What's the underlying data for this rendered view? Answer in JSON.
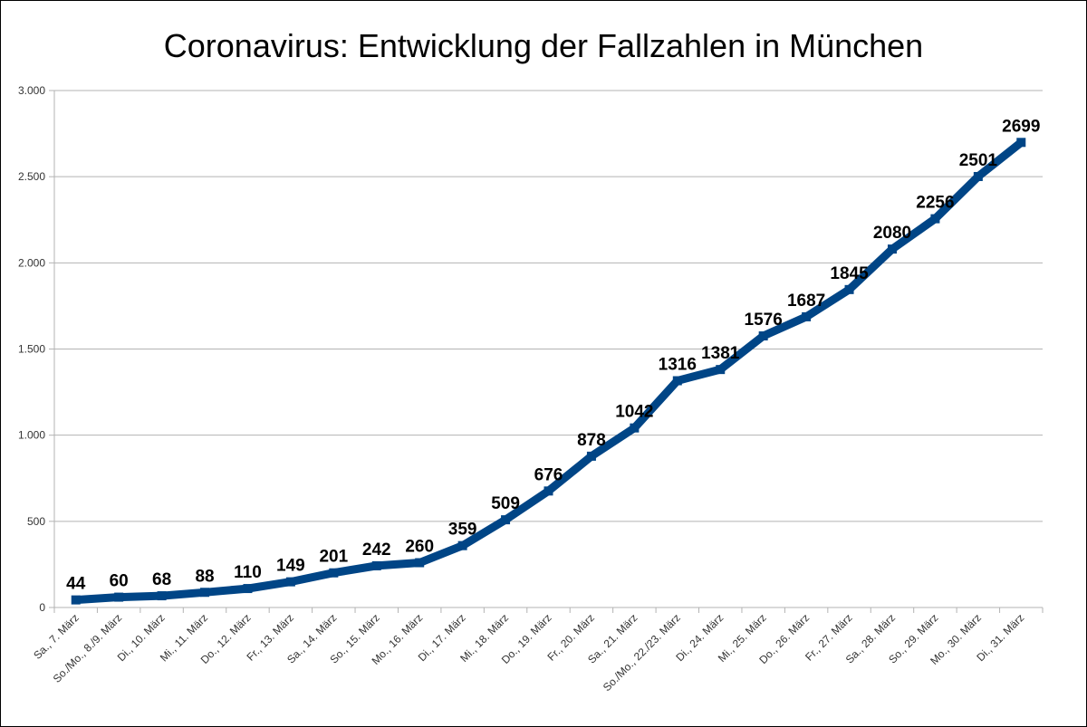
{
  "chart_data": {
    "type": "line",
    "title": "Coronavirus: Entwicklung der Fallzahlen in München",
    "xlabel": "",
    "ylabel": "",
    "categories": [
      "Sa., 7. März",
      "So./Mo., 8./9. März",
      "Di., 10. März",
      "Mi., 11. März",
      "Do., 12. März",
      "Fr., 13. März",
      "Sa., 14. März",
      "So., 15. März",
      "Mo., 16. März",
      "Di., 17. März",
      "Mi., 18. März",
      "Do., 19. März",
      "Fr., 20. März",
      "Sa., 21. März",
      "So./Mo., 22./23. März",
      "Di., 24. März",
      "Mi., 25. März",
      "Do., 26. März",
      "Fr., 27. März",
      "Sa., 28. März",
      "So., 29. März",
      "Mo., 30. März",
      "Di., 31. März"
    ],
    "values": [
      44,
      60,
      68,
      88,
      110,
      149,
      201,
      242,
      260,
      359,
      509,
      676,
      878,
      1042,
      1316,
      1381,
      1576,
      1687,
      1845,
      2080,
      2256,
      2501,
      2699
    ],
    "ylim": [
      0,
      3000
    ],
    "yticks": [
      0,
      500,
      1000,
      1500,
      2000,
      2500,
      3000
    ],
    "ytick_labels": [
      "0",
      "500",
      "1.000",
      "1.500",
      "2.000",
      "2.500",
      "3.000"
    ],
    "grid": true,
    "legend": "none",
    "colors": {
      "line": "#004586",
      "grid": "#b3b3b3",
      "axis": "#b3b3b3"
    }
  }
}
